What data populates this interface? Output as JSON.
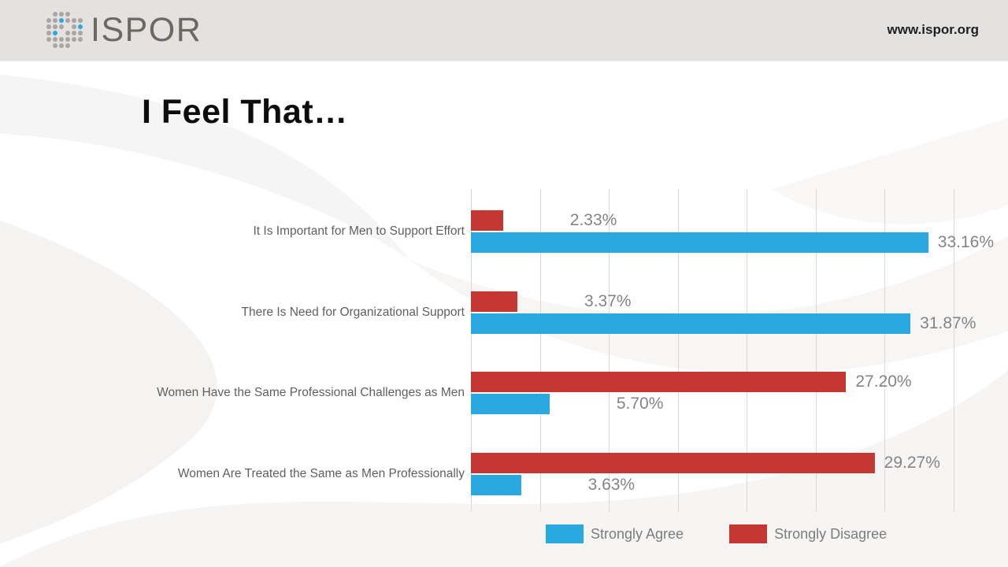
{
  "header": {
    "logo_text": "ISPOR",
    "site_url": "www.ispor.org",
    "logo_gray": "#A9A7A6",
    "logo_blue": "#29A9E0"
  },
  "title": "I Feel That…",
  "chart_data": {
    "type": "bar",
    "orientation": "horizontal",
    "title": "I Feel That…",
    "categories": [
      "It Is Important for Men to Support Effort",
      "There Is Need for Organizational Support",
      "Women Have the Same Professional Challenges as Men",
      "Women Are Treated the Same as Men Professionally"
    ],
    "series": [
      {
        "name": "Strongly Disagree",
        "color": "#C43732",
        "values": [
          2.33,
          3.37,
          27.2,
          29.27
        ],
        "labels": [
          "2.33%",
          "3.37%",
          "27.20%",
          "29.27%"
        ]
      },
      {
        "name": "Strongly Agree",
        "color": "#29A9E0",
        "values": [
          33.16,
          31.87,
          5.7,
          3.63
        ],
        "labels": [
          "33.16%",
          "31.87%",
          "5.70%",
          "3.63%"
        ]
      }
    ],
    "xlim": [
      0,
      35
    ],
    "gridline_step": 5,
    "grid": true,
    "legend_position": "bottom",
    "legend": [
      {
        "label": "Strongly Agree",
        "color": "#29A9E0"
      },
      {
        "label": "Strongly Disagree",
        "color": "#C43732"
      }
    ]
  }
}
